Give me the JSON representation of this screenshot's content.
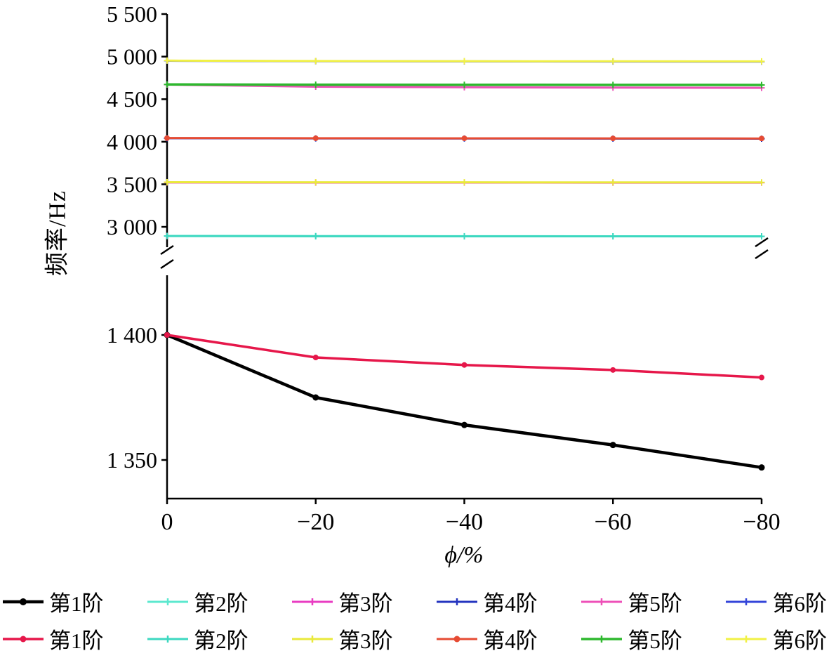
{
  "figure": {
    "background": "#ffffff"
  },
  "chart_data": {
    "type": "line",
    "title": "",
    "xlabel": "ϕ/%",
    "ylabel": "频率/Hz",
    "x": [
      0,
      -20,
      -40,
      -60,
      -80
    ],
    "x_tick_labels": [
      "0",
      "−20",
      "−40",
      "−60",
      "−80"
    ],
    "y_axis_break": true,
    "upper_panel": {
      "range": [
        2760,
        5500
      ],
      "ticks": [
        {
          "value": 5500,
          "label": "5 500"
        },
        {
          "value": 5000,
          "label": "5 000"
        },
        {
          "value": 4500,
          "label": "4 500"
        },
        {
          "value": 4000,
          "label": "4 000"
        },
        {
          "value": 3500,
          "label": "3 500"
        },
        {
          "value": 3000,
          "label": "3 000"
        }
      ]
    },
    "lower_panel": {
      "range": [
        1335,
        1424
      ],
      "ticks": [
        {
          "value": 1400,
          "label": "1 400"
        },
        {
          "value": 1350,
          "label": "1 350"
        }
      ]
    },
    "legend": {
      "rows": 2,
      "position": "bottom"
    },
    "series": [
      {
        "name": "第1阶",
        "set": 1,
        "panel": "lower",
        "color": "#000000",
        "line_width": 4.5,
        "marker": "dot",
        "values": [
          1400,
          1375,
          1364,
          1356,
          1347
        ]
      },
      {
        "name": "第2阶",
        "set": 1,
        "panel": "upper",
        "color": "#5ce8cf",
        "line_width": 3,
        "marker": "plus",
        "values": [
          2893,
          2891,
          2890,
          2889,
          2889
        ]
      },
      {
        "name": "第3阶",
        "set": 1,
        "panel": "upper",
        "color": "#e93cc2",
        "line_width": 3,
        "marker": "plus",
        "values": [
          3521,
          3520,
          3520,
          3519,
          3519
        ]
      },
      {
        "name": "第4阶",
        "set": 1,
        "panel": "upper",
        "color": "#2434bf",
        "line_width": 3,
        "marker": "plus",
        "values": [
          4041,
          4039,
          4038,
          4037,
          4036
        ]
      },
      {
        "name": "第5阶",
        "set": 1,
        "panel": "upper",
        "color": "#ee50b8",
        "line_width": 3,
        "marker": "plus",
        "values": [
          4671,
          4646,
          4640,
          4636,
          4633
        ]
      },
      {
        "name": "第6阶",
        "set": 1,
        "panel": "upper",
        "color": "#3345d9",
        "line_width": 3,
        "marker": "plus",
        "values": [
          4951,
          4946,
          4944,
          4942,
          4941
        ]
      },
      {
        "name": "第1阶",
        "set": 2,
        "panel": "lower",
        "color": "#e6174a",
        "line_width": 3.5,
        "marker": "dot",
        "values": [
          1400,
          1391,
          1388,
          1386,
          1383
        ]
      },
      {
        "name": "第2阶",
        "set": 2,
        "panel": "upper",
        "color": "#3cd8c0",
        "line_width": 3,
        "marker": "plus",
        "values": [
          2892,
          2890,
          2889,
          2889,
          2888
        ]
      },
      {
        "name": "第3阶",
        "set": 2,
        "panel": "upper",
        "color": "#e9e93b",
        "line_width": 3,
        "marker": "plus",
        "values": [
          3524,
          3523,
          3523,
          3522,
          3522
        ]
      },
      {
        "name": "第4阶",
        "set": 2,
        "panel": "upper",
        "color": "#e64b33",
        "line_width": 3,
        "marker": "dot",
        "values": [
          4043,
          4041,
          4040,
          4039,
          4038
        ]
      },
      {
        "name": "第5阶",
        "set": 2,
        "panel": "upper",
        "color": "#2eb82e",
        "line_width": 3.5,
        "marker": "plus",
        "values": [
          4673,
          4670,
          4669,
          4668,
          4667
        ]
      },
      {
        "name": "第6阶",
        "set": 2,
        "panel": "upper",
        "color": "#f1f145",
        "line_width": 3,
        "marker": "plus",
        "values": [
          4953,
          4948,
          4946,
          4945,
          4944
        ]
      }
    ]
  }
}
